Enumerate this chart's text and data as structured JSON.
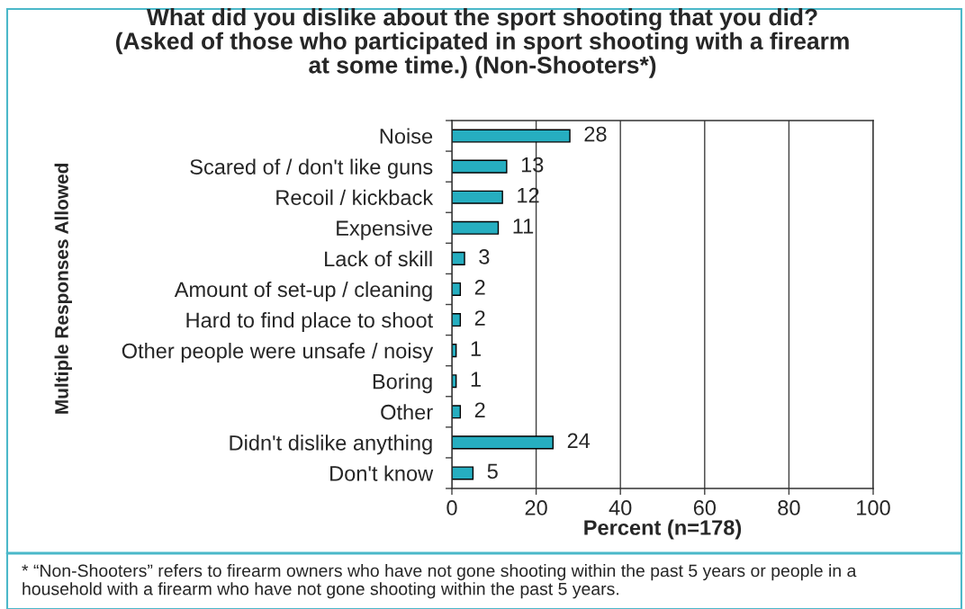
{
  "chart_data": {
    "type": "bar",
    "orientation": "horizontal",
    "title": "What did you dislike about the sport shooting that you did?\n(Asked of those who participated in sport shooting with a firearm\nat some time.) (Non-Shooters*)",
    "xlabel": "Percent (n=178)",
    "ylabel": "Multiple Responses Allowed",
    "categories": [
      "Noise",
      "Scared of / don't like guns",
      "Recoil / kickback",
      "Expensive",
      "Lack of skill",
      "Amount of set-up / cleaning",
      "Hard to find place to shoot",
      "Other people were unsafe / noisy",
      "Boring",
      "Other",
      "Didn't dislike anything",
      "Don't know"
    ],
    "values": [
      28,
      13,
      12,
      11,
      3,
      2,
      2,
      1,
      1,
      2,
      24,
      5
    ],
    "color": "#26aec0",
    "xlim": [
      0,
      100
    ],
    "xticks": [
      0,
      20,
      40,
      60,
      80,
      100
    ],
    "grid": "x",
    "data_labels": true,
    "annotations": [
      "* “Non-Shooters” refers to firearm owners who have not gone shooting within the past 5 years or people in a\nhousehold with a firearm who have not gone shooting within the past 5 years."
    ]
  }
}
